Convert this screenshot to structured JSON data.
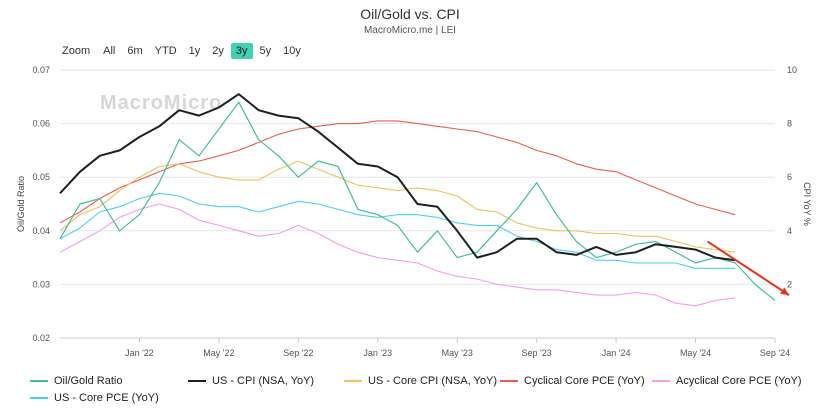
{
  "header": {
    "title": "Oil/Gold vs. CPI",
    "subtitle": "MacroMicro.me | LEI"
  },
  "watermark": {
    "text": "MacroMicro"
  },
  "zoom": {
    "label": "Zoom",
    "buttons": [
      "All",
      "6m",
      "YTD",
      "1y",
      "2y",
      "3y",
      "5y",
      "10y"
    ],
    "active": "3y"
  },
  "colors": {
    "oil_gold": "#41c09a",
    "cpi": "#1f1f1f",
    "core_cpi": "#f0c15a",
    "cyclical": "#e8604c",
    "acyclical": "#f39df0",
    "core_pce": "#4cd0ee",
    "arrow": "#e8341c"
  },
  "chart_data": {
    "type": "line",
    "title": "Oil/Gold vs. CPI",
    "subtitle": "MacroMicro.me | LEI",
    "xlabel": "",
    "ylabel_left": "Oil/Gold Ratio",
    "ylabel_right": "CPI YoY %",
    "x_range": [
      "2021-09",
      "2024-09"
    ],
    "ylim_left": [
      0.02,
      0.07
    ],
    "ylim_right": [
      0,
      10
    ],
    "yticks_left": [
      "0.07",
      "0.06",
      "0.05",
      "0.04",
      "0.03",
      "0.02"
    ],
    "yticks_right": [
      "10",
      "8",
      "6",
      "4",
      "2"
    ],
    "x_ticks": [
      {
        "label": "Jan '22",
        "date": "2022-01"
      },
      {
        "label": "May '22",
        "date": "2022-05"
      },
      {
        "label": "Sep '22",
        "date": "2022-09"
      },
      {
        "label": "Jan '23",
        "date": "2023-01"
      },
      {
        "label": "May '23",
        "date": "2023-05"
      },
      {
        "label": "Sep '23",
        "date": "2023-09"
      },
      {
        "label": "Jan '24",
        "date": "2024-01"
      },
      {
        "label": "May '24",
        "date": "2024-05"
      },
      {
        "label": "Sep '24",
        "date": "2024-09"
      }
    ],
    "grid": "horizontal",
    "legend_position": "bottom",
    "series": [
      {
        "name": "Oil/Gold Ratio",
        "axis": "left",
        "color_key": "oil_gold",
        "points": [
          [
            "2021-09",
            0.0385
          ],
          [
            "2021-10",
            0.045
          ],
          [
            "2021-11",
            0.046
          ],
          [
            "2021-12",
            0.04
          ],
          [
            "2022-01",
            0.043
          ],
          [
            "2022-02",
            0.049
          ],
          [
            "2022-03",
            0.057
          ],
          [
            "2022-04",
            0.054
          ],
          [
            "2022-05",
            0.059
          ],
          [
            "2022-06",
            0.064
          ],
          [
            "2022-07",
            0.057
          ],
          [
            "2022-08",
            0.054
          ],
          [
            "2022-09",
            0.05
          ],
          [
            "2022-10",
            0.053
          ],
          [
            "2022-11",
            0.052
          ],
          [
            "2022-12",
            0.044
          ],
          [
            "2023-01",
            0.043
          ],
          [
            "2023-02",
            0.041
          ],
          [
            "2023-03",
            0.036
          ],
          [
            "2023-04",
            0.04
          ],
          [
            "2023-05",
            0.035
          ],
          [
            "2023-06",
            0.036
          ],
          [
            "2023-07",
            0.04
          ],
          [
            "2023-08",
            0.044
          ],
          [
            "2023-09",
            0.049
          ],
          [
            "2023-10",
            0.043
          ],
          [
            "2023-11",
            0.038
          ],
          [
            "2023-12",
            0.035
          ],
          [
            "2024-01",
            0.036
          ],
          [
            "2024-02",
            0.0375
          ],
          [
            "2024-03",
            0.038
          ],
          [
            "2024-04",
            0.036
          ],
          [
            "2024-05",
            0.034
          ],
          [
            "2024-06",
            0.035
          ],
          [
            "2024-07",
            0.034
          ],
          [
            "2024-08",
            0.03
          ],
          [
            "2024-09",
            0.027
          ]
        ]
      },
      {
        "name": "US - CPI (NSA, YoY)",
        "axis": "right",
        "color_key": "cpi",
        "points": [
          [
            "2021-09",
            5.4
          ],
          [
            "2021-10",
            6.2
          ],
          [
            "2021-11",
            6.8
          ],
          [
            "2021-12",
            7.0
          ],
          [
            "2022-01",
            7.5
          ],
          [
            "2022-02",
            7.9
          ],
          [
            "2022-03",
            8.5
          ],
          [
            "2022-04",
            8.3
          ],
          [
            "2022-05",
            8.6
          ],
          [
            "2022-06",
            9.1
          ],
          [
            "2022-07",
            8.5
          ],
          [
            "2022-08",
            8.3
          ],
          [
            "2022-09",
            8.2
          ],
          [
            "2022-10",
            7.7
          ],
          [
            "2022-11",
            7.1
          ],
          [
            "2022-12",
            6.5
          ],
          [
            "2023-01",
            6.4
          ],
          [
            "2023-02",
            6.0
          ],
          [
            "2023-03",
            5.0
          ],
          [
            "2023-04",
            4.9
          ],
          [
            "2023-05",
            4.0
          ],
          [
            "2023-06",
            3.0
          ],
          [
            "2023-07",
            3.2
          ],
          [
            "2023-08",
            3.7
          ],
          [
            "2023-09",
            3.7
          ],
          [
            "2023-10",
            3.2
          ],
          [
            "2023-11",
            3.1
          ],
          [
            "2023-12",
            3.4
          ],
          [
            "2024-01",
            3.1
          ],
          [
            "2024-02",
            3.2
          ],
          [
            "2024-03",
            3.5
          ],
          [
            "2024-04",
            3.4
          ],
          [
            "2024-05",
            3.3
          ],
          [
            "2024-06",
            3.0
          ],
          [
            "2024-07",
            2.9
          ]
        ]
      },
      {
        "name": "US - Core CPI (NSA, YoY)",
        "axis": "right",
        "color_key": "core_cpi",
        "points": [
          [
            "2021-09",
            4.0
          ],
          [
            "2021-10",
            4.6
          ],
          [
            "2021-11",
            4.9
          ],
          [
            "2021-12",
            5.5
          ],
          [
            "2022-01",
            6.0
          ],
          [
            "2022-02",
            6.4
          ],
          [
            "2022-03",
            6.5
          ],
          [
            "2022-04",
            6.2
          ],
          [
            "2022-05",
            6.0
          ],
          [
            "2022-06",
            5.9
          ],
          [
            "2022-07",
            5.9
          ],
          [
            "2022-08",
            6.3
          ],
          [
            "2022-09",
            6.6
          ],
          [
            "2022-10",
            6.3
          ],
          [
            "2022-11",
            6.0
          ],
          [
            "2022-12",
            5.7
          ],
          [
            "2023-01",
            5.6
          ],
          [
            "2023-02",
            5.5
          ],
          [
            "2023-03",
            5.6
          ],
          [
            "2023-04",
            5.5
          ],
          [
            "2023-05",
            5.3
          ],
          [
            "2023-06",
            4.8
          ],
          [
            "2023-07",
            4.7
          ],
          [
            "2023-08",
            4.3
          ],
          [
            "2023-09",
            4.1
          ],
          [
            "2023-10",
            4.0
          ],
          [
            "2023-11",
            4.0
          ],
          [
            "2023-12",
            3.9
          ],
          [
            "2024-01",
            3.9
          ],
          [
            "2024-02",
            3.8
          ],
          [
            "2024-03",
            3.8
          ],
          [
            "2024-04",
            3.6
          ],
          [
            "2024-05",
            3.4
          ],
          [
            "2024-06",
            3.3
          ],
          [
            "2024-07",
            3.2
          ]
        ]
      },
      {
        "name": "Cyclical Core PCE (YoY)",
        "axis": "right",
        "color_key": "cyclical",
        "points": [
          [
            "2021-09",
            4.3
          ],
          [
            "2021-10",
            4.7
          ],
          [
            "2021-11",
            5.2
          ],
          [
            "2021-12",
            5.6
          ],
          [
            "2022-01",
            5.9
          ],
          [
            "2022-02",
            6.2
          ],
          [
            "2022-03",
            6.5
          ],
          [
            "2022-04",
            6.6
          ],
          [
            "2022-05",
            6.8
          ],
          [
            "2022-06",
            7.0
          ],
          [
            "2022-07",
            7.3
          ],
          [
            "2022-08",
            7.6
          ],
          [
            "2022-09",
            7.8
          ],
          [
            "2022-10",
            7.9
          ],
          [
            "2022-11",
            8.0
          ],
          [
            "2022-12",
            8.0
          ],
          [
            "2023-01",
            8.1
          ],
          [
            "2023-02",
            8.1
          ],
          [
            "2023-03",
            8.0
          ],
          [
            "2023-04",
            7.9
          ],
          [
            "2023-05",
            7.8
          ],
          [
            "2023-06",
            7.7
          ],
          [
            "2023-07",
            7.5
          ],
          [
            "2023-08",
            7.3
          ],
          [
            "2023-09",
            7.0
          ],
          [
            "2023-10",
            6.8
          ],
          [
            "2023-11",
            6.5
          ],
          [
            "2023-12",
            6.3
          ],
          [
            "2024-01",
            6.2
          ],
          [
            "2024-02",
            5.9
          ],
          [
            "2024-03",
            5.6
          ],
          [
            "2024-04",
            5.3
          ],
          [
            "2024-05",
            5.0
          ],
          [
            "2024-06",
            4.8
          ],
          [
            "2024-07",
            4.6
          ]
        ]
      },
      {
        "name": "Acyclical Core PCE (YoY)",
        "axis": "right",
        "color_key": "acyclical",
        "points": [
          [
            "2021-09",
            3.2
          ],
          [
            "2021-10",
            3.6
          ],
          [
            "2021-11",
            4.0
          ],
          [
            "2021-12",
            4.5
          ],
          [
            "2022-01",
            4.8
          ],
          [
            "2022-02",
            5.0
          ],
          [
            "2022-03",
            4.8
          ],
          [
            "2022-04",
            4.4
          ],
          [
            "2022-05",
            4.2
          ],
          [
            "2022-06",
            4.0
          ],
          [
            "2022-07",
            3.8
          ],
          [
            "2022-08",
            3.9
          ],
          [
            "2022-09",
            4.2
          ],
          [
            "2022-10",
            3.9
          ],
          [
            "2022-11",
            3.5
          ],
          [
            "2022-12",
            3.2
          ],
          [
            "2023-01",
            3.0
          ],
          [
            "2023-02",
            2.9
          ],
          [
            "2023-03",
            2.8
          ],
          [
            "2023-04",
            2.5
          ],
          [
            "2023-05",
            2.3
          ],
          [
            "2023-06",
            2.2
          ],
          [
            "2023-07",
            2.0
          ],
          [
            "2023-08",
            1.9
          ],
          [
            "2023-09",
            1.8
          ],
          [
            "2023-10",
            1.8
          ],
          [
            "2023-11",
            1.7
          ],
          [
            "2023-12",
            1.6
          ],
          [
            "2024-01",
            1.6
          ],
          [
            "2024-02",
            1.7
          ],
          [
            "2024-03",
            1.6
          ],
          [
            "2024-04",
            1.3
          ],
          [
            "2024-05",
            1.2
          ],
          [
            "2024-06",
            1.4
          ],
          [
            "2024-07",
            1.5
          ]
        ]
      },
      {
        "name": "US - Core PCE (YoY)",
        "axis": "right",
        "color_key": "core_pce",
        "points": [
          [
            "2021-09",
            3.7
          ],
          [
            "2021-10",
            4.1
          ],
          [
            "2021-11",
            4.7
          ],
          [
            "2021-12",
            4.9
          ],
          [
            "2022-01",
            5.2
          ],
          [
            "2022-02",
            5.4
          ],
          [
            "2022-03",
            5.3
          ],
          [
            "2022-04",
            5.0
          ],
          [
            "2022-05",
            4.9
          ],
          [
            "2022-06",
            4.9
          ],
          [
            "2022-07",
            4.7
          ],
          [
            "2022-08",
            4.9
          ],
          [
            "2022-09",
            5.1
          ],
          [
            "2022-10",
            5.0
          ],
          [
            "2022-11",
            4.8
          ],
          [
            "2022-12",
            4.6
          ],
          [
            "2023-01",
            4.5
          ],
          [
            "2023-02",
            4.6
          ],
          [
            "2023-03",
            4.6
          ],
          [
            "2023-04",
            4.5
          ],
          [
            "2023-05",
            4.3
          ],
          [
            "2023-06",
            4.2
          ],
          [
            "2023-07",
            4.2
          ],
          [
            "2023-08",
            3.8
          ],
          [
            "2023-09",
            3.6
          ],
          [
            "2023-10",
            3.3
          ],
          [
            "2023-11",
            3.2
          ],
          [
            "2023-12",
            2.9
          ],
          [
            "2024-01",
            2.9
          ],
          [
            "2024-02",
            2.8
          ],
          [
            "2024-03",
            2.8
          ],
          [
            "2024-04",
            2.8
          ],
          [
            "2024-05",
            2.6
          ],
          [
            "2024-06",
            2.6
          ],
          [
            "2024-07",
            2.6
          ]
        ]
      }
    ],
    "annotations": [
      {
        "type": "arrow",
        "from": [
          "2024-05",
          3.6
        ],
        "to": [
          "2024-09",
          1.6
        ],
        "axis": "right",
        "color_key": "arrow"
      }
    ]
  }
}
